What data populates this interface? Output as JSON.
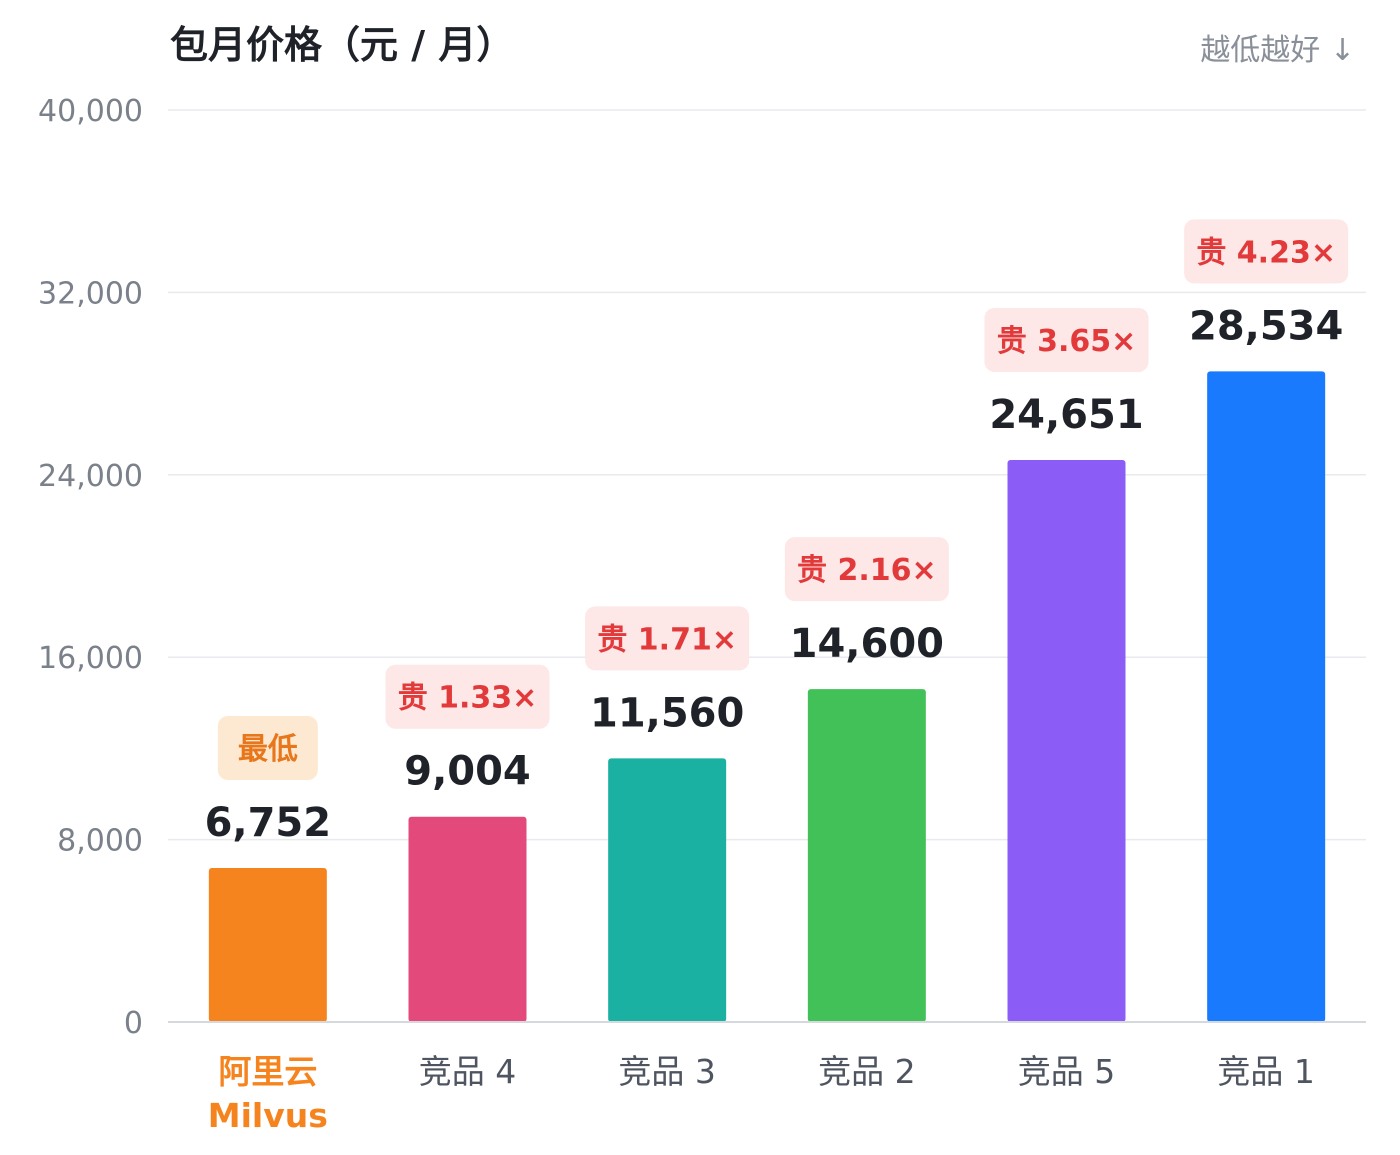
{
  "colors": {
    "highlight": "#f5841f",
    "badge_bg_lowest": "#fde9d2",
    "badge_fg_lowest": "#e8761b",
    "badge_bg_expensive": "#fde7e7",
    "badge_fg_expensive": "#e23a3a"
  },
  "chart_data": {
    "type": "bar",
    "title": "包月价格（元 / 月）",
    "hint": "越低越好 ↓",
    "xlabel": "",
    "ylabel": "",
    "ylim": [
      0,
      40000
    ],
    "yticks": [
      0,
      8000,
      16000,
      24000,
      32000,
      40000
    ],
    "ytick_labels": [
      "0",
      "8,000",
      "16,000",
      "24,000",
      "32,000",
      "40,000"
    ],
    "grid": true,
    "bars": [
      {
        "category": [
          "阿里云",
          "Milvus"
        ],
        "value": 6752,
        "value_label": "6,752",
        "badge": "最低",
        "badge_style": "lowest",
        "color": "#f5841f",
        "highlight": true
      },
      {
        "category": [
          "竞品 4"
        ],
        "value": 9004,
        "value_label": "9,004",
        "badge": "贵 1.33×",
        "badge_style": "expensive",
        "color": "#e34a7b",
        "highlight": false
      },
      {
        "category": [
          "竞品 3"
        ],
        "value": 11560,
        "value_label": "11,560",
        "badge": "贵 1.71×",
        "badge_style": "expensive",
        "color": "#1ab0a2",
        "highlight": false
      },
      {
        "category": [
          "竞品 2"
        ],
        "value": 14600,
        "value_label": "14,600",
        "badge": "贵 2.16×",
        "badge_style": "expensive",
        "color": "#42c158",
        "highlight": false
      },
      {
        "category": [
          "竞品 5"
        ],
        "value": 24651,
        "value_label": "24,651",
        "badge": "贵 3.65×",
        "badge_style": "expensive",
        "color": "#8b5cf6",
        "highlight": false
      },
      {
        "category": [
          "竞品 1"
        ],
        "value": 28534,
        "value_label": "28,534",
        "badge": "贵 4.23×",
        "badge_style": "expensive",
        "color": "#1a7afd",
        "highlight": false
      }
    ]
  }
}
